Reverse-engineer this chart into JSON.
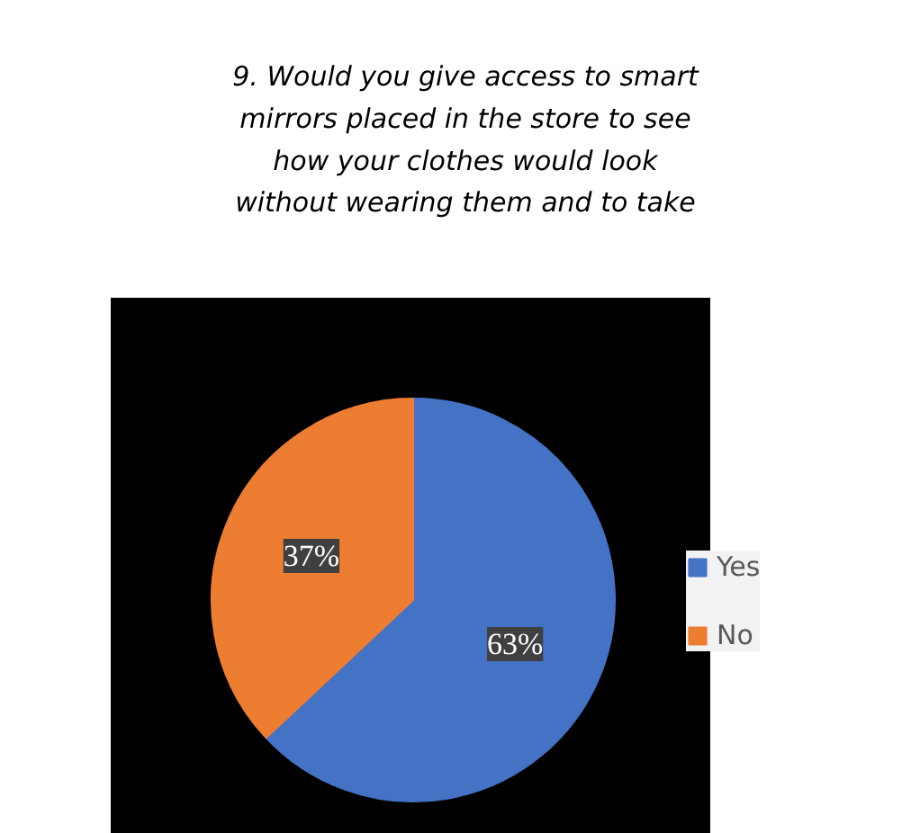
{
  "chart_data": {
    "type": "pie",
    "title": "9. Would you give access to smart mirrors placed in the store to see how your clothes would look without wearing them and to take",
    "categories": [
      "Yes",
      "No"
    ],
    "values": [
      63,
      37
    ],
    "value_labels": [
      "63%",
      "37%"
    ],
    "data_labels": true,
    "colors": [
      "#4472c4",
      "#ed7d31"
    ],
    "legend": "right"
  }
}
